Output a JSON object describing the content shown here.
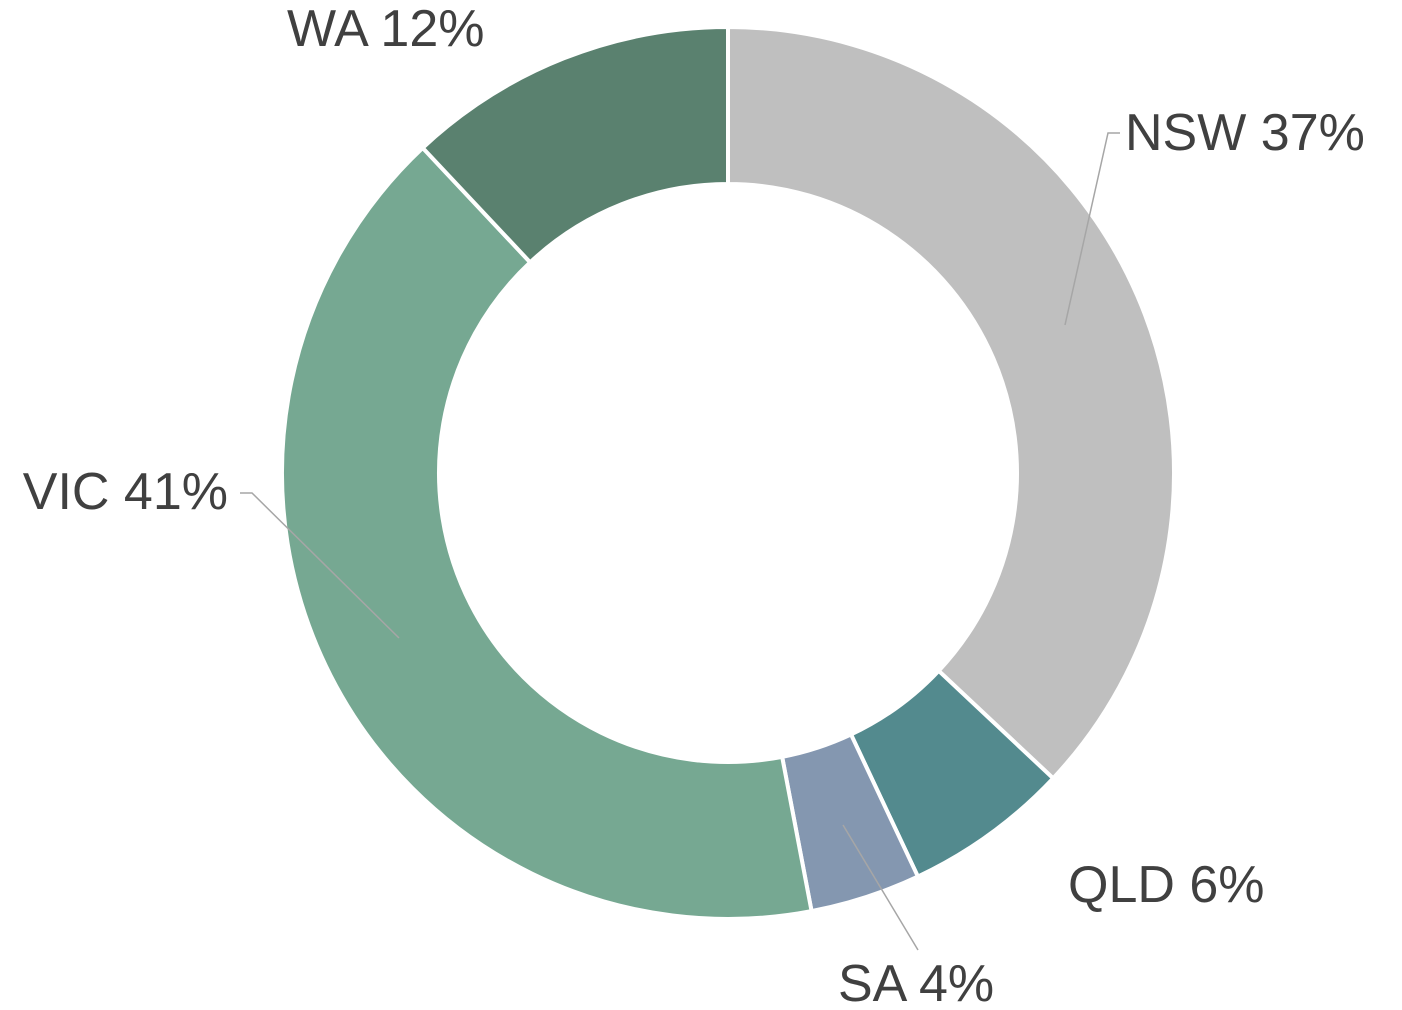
{
  "chart_data": {
    "type": "donut",
    "categories": [
      "NSW",
      "QLD",
      "SA",
      "VIC",
      "WA"
    ],
    "values": [
      37,
      6,
      4,
      41,
      12
    ],
    "value_labels": [
      "37%",
      "6%",
      "4%",
      "41%",
      "12%"
    ],
    "colors": [
      "#bfbfbf",
      "#538a8e",
      "#8497b0",
      "#76a892",
      "#5a816f"
    ]
  }
}
